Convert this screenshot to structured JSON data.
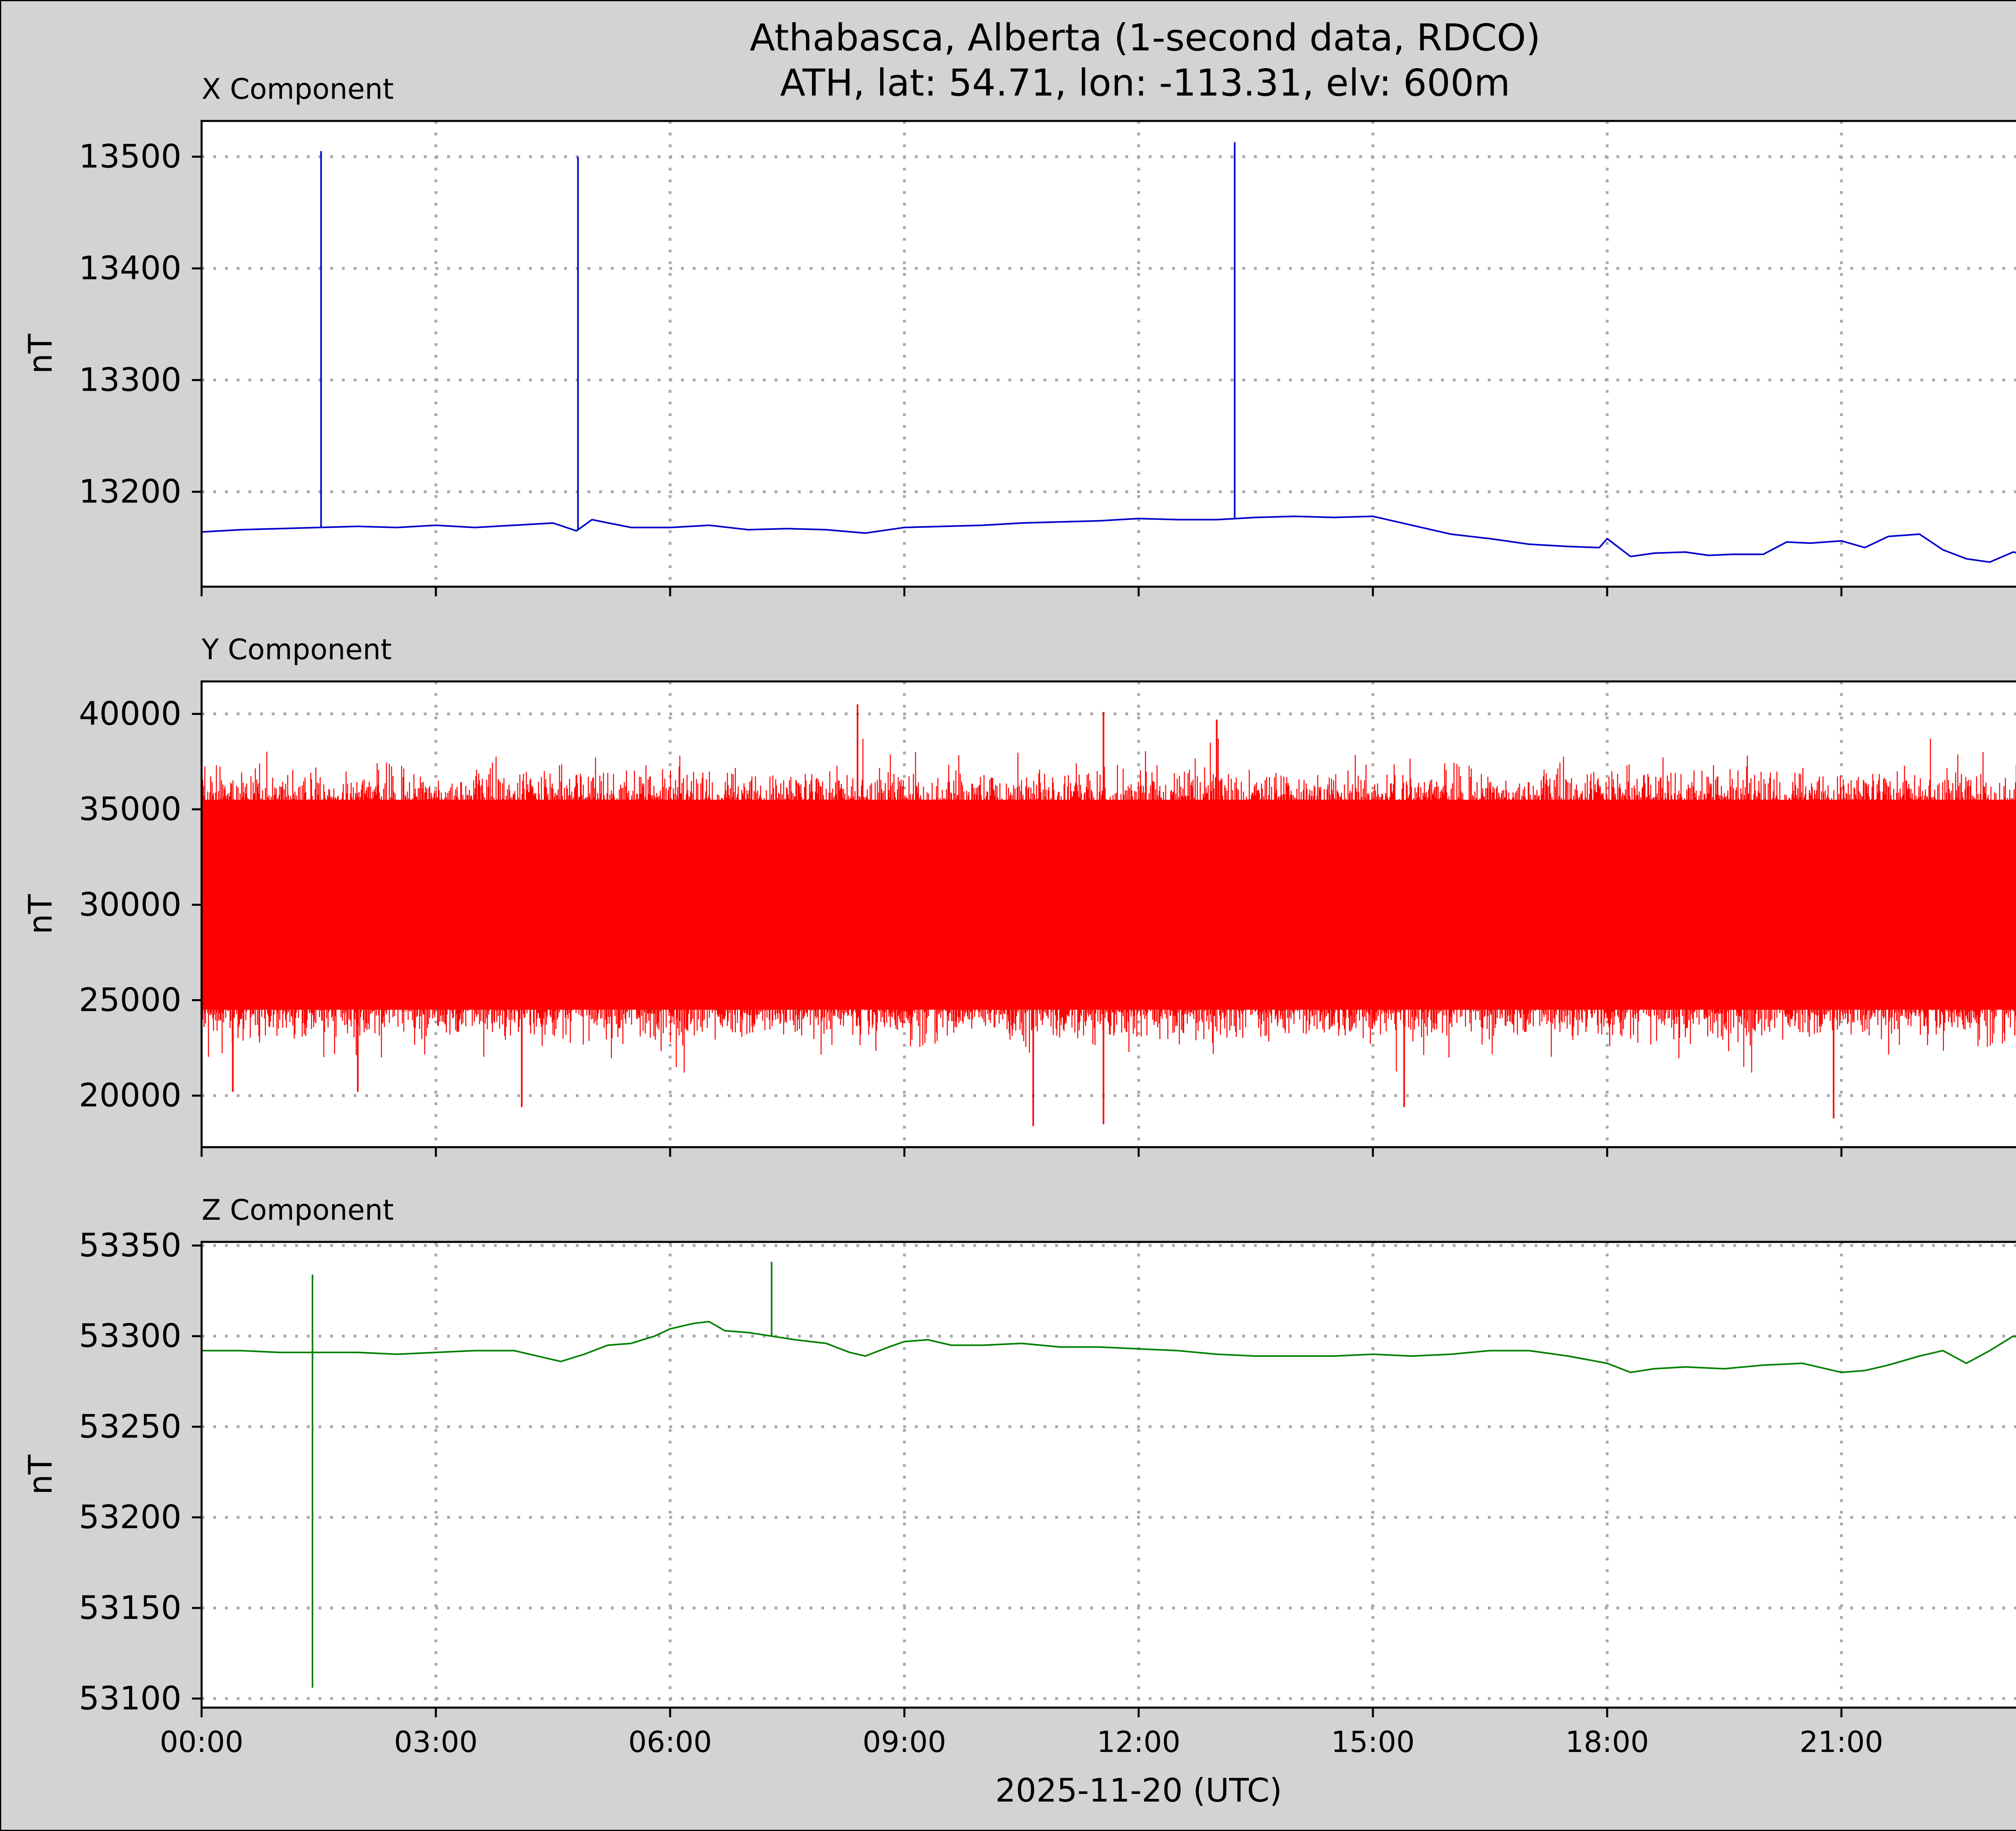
{
  "figure": {
    "title_line1": "Athabasca, Alberta (1-second data, RDCO)",
    "title_line2": "ATH, lat: 54.71, lon: -113.31, elv: 600m",
    "xlabel": "2025-11-20 (UTC)",
    "background": "#d3d3d3"
  },
  "chart_data": [
    {
      "type": "line",
      "title": "X Component",
      "ylabel": "nT",
      "color": "#0000cc",
      "xlim": [
        0,
        24
      ],
      "ylim": [
        13115,
        13532
      ],
      "yticks": [
        13200,
        13300,
        13400,
        13500
      ],
      "xticks": [
        "00:00",
        "03:00",
        "06:00",
        "09:00",
        "12:00",
        "15:00",
        "18:00",
        "21:00"
      ],
      "grid": "dotted",
      "series": [
        {
          "x": [
            0.0,
            0.5,
            1.0,
            1.5,
            2.0,
            2.5,
            3.0,
            3.5,
            4.0,
            4.5,
            4.8,
            5.0,
            5.5,
            6.0,
            6.5,
            7.0,
            7.5,
            8.0,
            8.5,
            9.0,
            9.5,
            10.0,
            10.5,
            11.0,
            11.5,
            12.0,
            12.5,
            13.0,
            13.5,
            14.0,
            14.5,
            15.0,
            15.5,
            16.0,
            16.5,
            17.0,
            17.5,
            17.9,
            18.0,
            18.3,
            18.6,
            19.0,
            19.3,
            19.6,
            20.0,
            20.3,
            20.6,
            21.0,
            21.3,
            21.6,
            22.0,
            22.3,
            22.6,
            22.9,
            23.2,
            23.6,
            24.0
          ],
          "y": [
            13164,
            13166,
            13167,
            13168,
            13169,
            13168,
            13170,
            13168,
            13170,
            13172,
            13165,
            13175,
            13168,
            13168,
            13170,
            13166,
            13167,
            13166,
            13163,
            13168,
            13169,
            13170,
            13172,
            13173,
            13174,
            13176,
            13175,
            13175,
            13177,
            13178,
            13177,
            13178,
            13170,
            13162,
            13158,
            13153,
            13151,
            13150,
            13158,
            13142,
            13145,
            13146,
            13143,
            13144,
            13144,
            13155,
            13154,
            13156,
            13150,
            13160,
            13162,
            13148,
            13140,
            13137,
            13146,
            13140,
            13166
          ]
        }
      ],
      "spikes": [
        {
          "x": 1.53,
          "y": 13505
        },
        {
          "x": 4.82,
          "y": 13500
        },
        {
          "x": 13.23,
          "y": 13513
        }
      ]
    },
    {
      "type": "line",
      "title": "Y Component",
      "ylabel": "nT",
      "color": "#ff0000",
      "xlim": [
        0,
        24
      ],
      "ylim": [
        17300,
        41700
      ],
      "yticks": [
        20000,
        25000,
        30000,
        35000,
        40000
      ],
      "xticks": [
        "00:00",
        "03:00",
        "06:00",
        "09:00",
        "12:00",
        "15:00",
        "18:00",
        "21:00"
      ],
      "grid": "dotted",
      "noise_band": {
        "center": 30000,
        "dense_low": 25000,
        "dense_high": 35000,
        "occasional_low": 22000,
        "occasional_high": 37500
      },
      "extremes": [
        {
          "x": 8.4,
          "y": 40500
        },
        {
          "x": 11.55,
          "y": 40100
        },
        {
          "x": 13.0,
          "y": 39700
        },
        {
          "x": 10.65,
          "y": 18400
        },
        {
          "x": 11.55,
          "y": 18500
        },
        {
          "x": 15.4,
          "y": 19400
        },
        {
          "x": 20.9,
          "y": 18800
        },
        {
          "x": 4.1,
          "y": 19400
        },
        {
          "x": 2.0,
          "y": 20200
        },
        {
          "x": 0.4,
          "y": 20200
        }
      ]
    },
    {
      "type": "line",
      "title": "Z Component",
      "ylabel": "nT",
      "color": "#008000",
      "xlim": [
        0,
        24
      ],
      "ylim": [
        53095,
        53352
      ],
      "yticks": [
        53100,
        53150,
        53200,
        53250,
        53300,
        53350
      ],
      "xticks": [
        "00:00",
        "03:00",
        "06:00",
        "09:00",
        "12:00",
        "15:00",
        "18:00",
        "21:00"
      ],
      "grid": "dotted",
      "series": [
        {
          "x": [
            0.0,
            0.5,
            1.0,
            1.5,
            2.0,
            2.5,
            3.0,
            3.5,
            4.0,
            4.3,
            4.6,
            4.9,
            5.2,
            5.5,
            5.8,
            6.0,
            6.3,
            6.5,
            6.7,
            7.0,
            7.3,
            7.6,
            8.0,
            8.3,
            8.5,
            8.8,
            9.0,
            9.3,
            9.6,
            10.0,
            10.5,
            11.0,
            11.5,
            12.0,
            12.5,
            13.0,
            13.5,
            14.0,
            14.5,
            15.0,
            15.5,
            16.0,
            16.5,
            17.0,
            17.5,
            18.0,
            18.3,
            18.6,
            19.0,
            19.5,
            20.0,
            20.5,
            20.8,
            21.0,
            21.3,
            21.6,
            22.0,
            22.3,
            22.6,
            22.9,
            23.2,
            23.5,
            23.8,
            24.0
          ],
          "y": [
            53292,
            53292,
            53291,
            53291,
            53291,
            53290,
            53291,
            53292,
            53292,
            53289,
            53286,
            53290,
            53295,
            53296,
            53300,
            53304,
            53307,
            53308,
            53303,
            53302,
            53300,
            53298,
            53296,
            53291,
            53289,
            53294,
            53297,
            53298,
            53295,
            53295,
            53296,
            53294,
            53294,
            53293,
            53292,
            53290,
            53289,
            53289,
            53289,
            53290,
            53289,
            53290,
            53292,
            53292,
            53289,
            53285,
            53280,
            53282,
            53283,
            53282,
            53284,
            53285,
            53282,
            53280,
            53281,
            53284,
            53289,
            53292,
            53285,
            53292,
            53300,
            53298,
            53312,
            53318
          ]
        }
      ],
      "spikes": [
        {
          "x": 1.42,
          "y": 53106,
          "y_from": 53334
        },
        {
          "x": 7.3,
          "y": 53341,
          "y_from": 53300
        }
      ]
    }
  ]
}
